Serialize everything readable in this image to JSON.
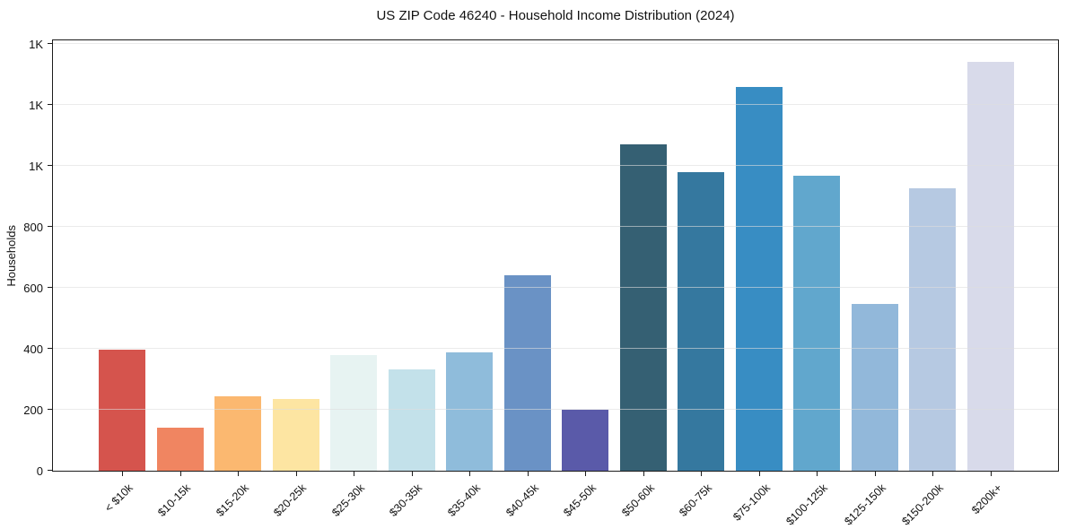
{
  "chart_data": {
    "type": "bar",
    "title": "US ZIP Code 46240 - Household Income Distribution (2024)",
    "xlabel": "",
    "ylabel": "Households",
    "categories": [
      "< $10k",
      "$10-15k",
      "$15-20k",
      "$20-25k",
      "$25-30k",
      "$30-35k",
      "$35-40k",
      "$40-45k",
      "$45-50k",
      "$50-60k",
      "$60-75k",
      "$75-100k",
      "$100-125k",
      "$125-150k",
      "$150-200k",
      "$200k+"
    ],
    "values": [
      396,
      140,
      243,
      236,
      379,
      333,
      389,
      640,
      200,
      1069,
      978,
      1259,
      966,
      547,
      927,
      1342
    ],
    "bar_colors": [
      "#d5544d",
      "#f08561",
      "#fbb870",
      "#fde5a2",
      "#e7f3f2",
      "#c3e1ea",
      "#8fbcdb",
      "#6a92c5",
      "#5a5aa9",
      "#356073",
      "#35789f",
      "#388dc3",
      "#61a7cd",
      "#92b8da",
      "#b6c9e2",
      "#d8daea"
    ],
    "ylim": [
      0,
      1417
    ],
    "yticks": [
      {
        "value": 0,
        "label": "0"
      },
      {
        "value": 200,
        "label": "200"
      },
      {
        "value": 400,
        "label": "400"
      },
      {
        "value": 600,
        "label": "600"
      },
      {
        "value": 800,
        "label": "800"
      },
      {
        "value": 1000,
        "label": "1K"
      },
      {
        "value": 1200,
        "label": "1K"
      },
      {
        "value": 1400,
        "label": "1K"
      }
    ],
    "grid": "horizontal",
    "legend_position": "none",
    "x_tick_rotation_deg": 45
  },
  "colors": {
    "background": "#ffffff",
    "grid_over_bars": "rgba(221,221,221,0.6)",
    "axis": "#1c1c1c",
    "text": "#1a1a1a"
  }
}
